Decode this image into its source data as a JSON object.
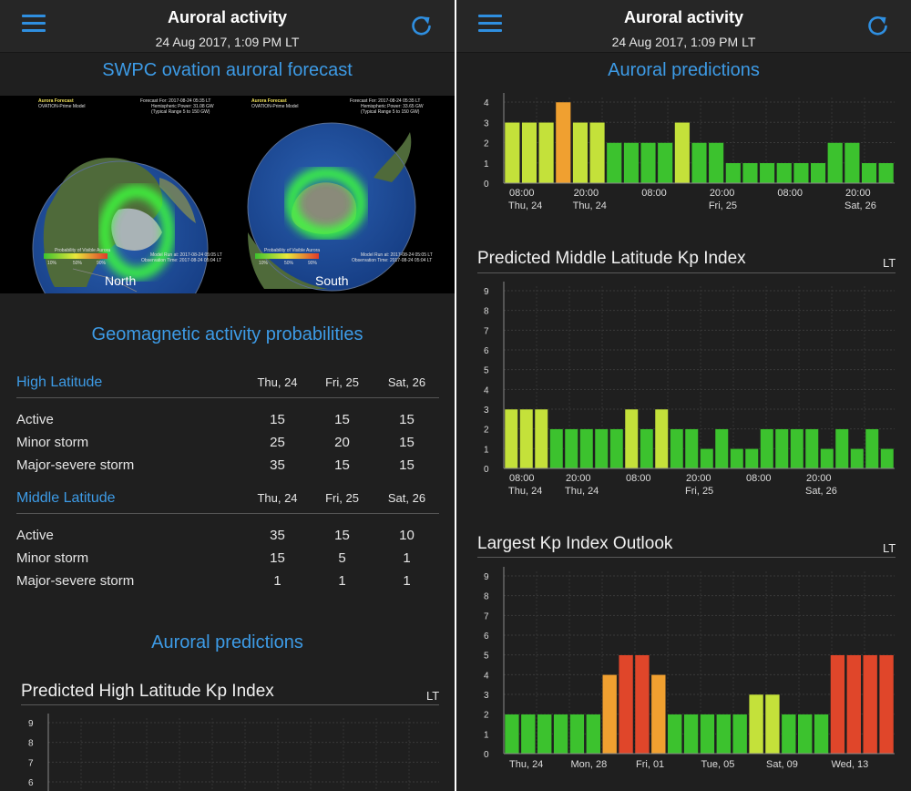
{
  "app": {
    "title": "Auroral activity",
    "subtitle": "24 Aug 2017, 1:09 PM LT"
  },
  "icons": {
    "menu": "hamburger-menu-icon",
    "refresh": "refresh-icon"
  },
  "colors": {
    "accent": "#3d9be6",
    "kp_1_2": "#3cc22e",
    "kp_3": "#c4e13a",
    "kp_4": "#f0a030",
    "kp_5": "#e0462a"
  },
  "left": {
    "forecast_title": "SWPC ovation auroral forecast",
    "maps": [
      {
        "label": "North",
        "header_left": [
          "Aurora Forecast",
          "OVATION-Prime Model"
        ],
        "header_right": [
          "Forecast For: 2017-08-24 05:35 LT",
          "Hemispheric Power: 31.08 GW",
          "(Typical Range 5 to 150 GW)"
        ],
        "legend_title": "Probability of Visible Aurora",
        "legend_ticks": [
          "10%",
          "50%",
          "90%"
        ],
        "footer": [
          "Model Run at: 2017-08-24 05:05 LT",
          "Observation Time: 2017-08-24 05:04 LT"
        ]
      },
      {
        "label": "South",
        "header_left": [
          "Aurora Forecast",
          "OVATION-Prime Model"
        ],
        "header_right": [
          "Forecast For: 2017-08-24 05:35 LT",
          "Hemispheric Power: 33.65 GW",
          "(Typical Range 5 to 150 GW)"
        ],
        "legend_title": "Probability of Visible Aurora",
        "legend_ticks": [
          "10%",
          "50%",
          "90%"
        ],
        "footer": [
          "Model Run at: 2017-08-24 05:05 LT",
          "Observation Time: 2017-08-24 05:04 LT"
        ]
      }
    ],
    "geo_title": "Geomagnetic activity probabilities",
    "high": {
      "heading": "High Latitude",
      "days": [
        "Thu, 24",
        "Fri, 25",
        "Sat, 26"
      ],
      "rows": [
        {
          "label": "Active",
          "values": [
            "15",
            "15",
            "15"
          ]
        },
        {
          "label": "Minor storm",
          "values": [
            "25",
            "20",
            "15"
          ]
        },
        {
          "label": "Major-severe storm",
          "values": [
            "35",
            "15",
            "15"
          ]
        }
      ]
    },
    "middle": {
      "heading": "Middle Latitude",
      "days": [
        "Thu, 24",
        "Fri, 25",
        "Sat, 26"
      ],
      "rows": [
        {
          "label": "Active",
          "values": [
            "35",
            "15",
            "10"
          ]
        },
        {
          "label": "Minor storm",
          "values": [
            "15",
            "5",
            "1"
          ]
        },
        {
          "label": "Major-severe storm",
          "values": [
            "1",
            "1",
            "1"
          ]
        }
      ]
    },
    "predictions_title": "Auroral predictions",
    "high_chart_title": "Predicted High Latitude Kp Index",
    "high_chart_lt": "LT"
  },
  "right": {
    "predictions_title": "Auroral predictions",
    "middle_chart_title": "Predicted Middle Latitude Kp Index",
    "middle_chart_lt": "LT",
    "outlook_title": "Largest Kp Index Outlook",
    "outlook_lt": "LT"
  },
  "chart_data": [
    {
      "type": "bar",
      "title": "Predicted High Latitude Kp Index",
      "ylim": [
        0,
        9
      ],
      "note": "top portion visible on left screen",
      "yticks": [
        "9",
        "8",
        "7",
        "6"
      ]
    },
    {
      "type": "bar",
      "title": "Predicted High Latitude Kp Index",
      "note": "lower portion visible at top of right screen",
      "ylim": [
        0,
        4
      ],
      "yticks": [
        "4",
        "3",
        "2",
        "1",
        "0"
      ],
      "values": [
        3,
        3,
        3,
        4,
        3,
        3,
        2,
        2,
        2,
        2,
        3,
        2,
        2,
        1,
        1,
        1,
        1,
        1,
        1,
        2,
        2,
        1,
        1
      ],
      "xticks": [
        {
          "index": 0,
          "time": "08:00",
          "day": "Thu, 24"
        },
        {
          "index": 4,
          "time": "20:00",
          "day": "Thu, 24"
        },
        {
          "index": 8,
          "time": "08:00",
          "day": ""
        },
        {
          "index": 12,
          "time": "20:00",
          "day": "Fri, 25"
        },
        {
          "index": 16,
          "time": "08:00",
          "day": ""
        },
        {
          "index": 20,
          "time": "20:00",
          "day": "Sat, 26"
        }
      ]
    },
    {
      "type": "bar",
      "title": "Predicted Middle Latitude Kp Index",
      "ylim": [
        0,
        9
      ],
      "yticks": [
        "9",
        "8",
        "7",
        "6",
        "5",
        "4",
        "3",
        "2",
        "1",
        "0"
      ],
      "values": [
        3,
        3,
        3,
        2,
        2,
        2,
        2,
        2,
        3,
        2,
        3,
        2,
        2,
        1,
        2,
        1,
        1,
        2,
        2,
        2,
        2,
        1,
        2,
        1,
        2,
        1
      ],
      "xticks": [
        {
          "index": 0,
          "time": "08:00",
          "day": "Thu, 24"
        },
        {
          "index": 4,
          "time": "20:00",
          "day": "Thu, 24"
        },
        {
          "index": 8,
          "time": "08:00",
          "day": ""
        },
        {
          "index": 12,
          "time": "20:00",
          "day": "Fri, 25"
        },
        {
          "index": 16,
          "time": "08:00",
          "day": ""
        },
        {
          "index": 20,
          "time": "20:00",
          "day": "Sat, 26"
        }
      ]
    },
    {
      "type": "bar",
      "title": "Largest Kp Index Outlook",
      "ylim": [
        0,
        9
      ],
      "yticks": [
        "9",
        "8",
        "7",
        "6",
        "5",
        "4",
        "3",
        "2",
        "1",
        "0"
      ],
      "values": [
        2,
        2,
        2,
        2,
        2,
        2,
        4,
        5,
        5,
        4,
        2,
        2,
        2,
        2,
        2,
        3,
        3,
        2,
        2,
        2,
        5,
        5,
        5,
        5
      ],
      "xticks": [
        {
          "index": 0,
          "label": "Thu, 24"
        },
        {
          "index": 4,
          "label": "Mon, 28"
        },
        {
          "index": 8,
          "label": "Fri, 01"
        },
        {
          "index": 12,
          "label": "Tue, 05"
        },
        {
          "index": 16,
          "label": "Sat, 09"
        },
        {
          "index": 20,
          "label": "Wed, 13"
        }
      ]
    }
  ]
}
